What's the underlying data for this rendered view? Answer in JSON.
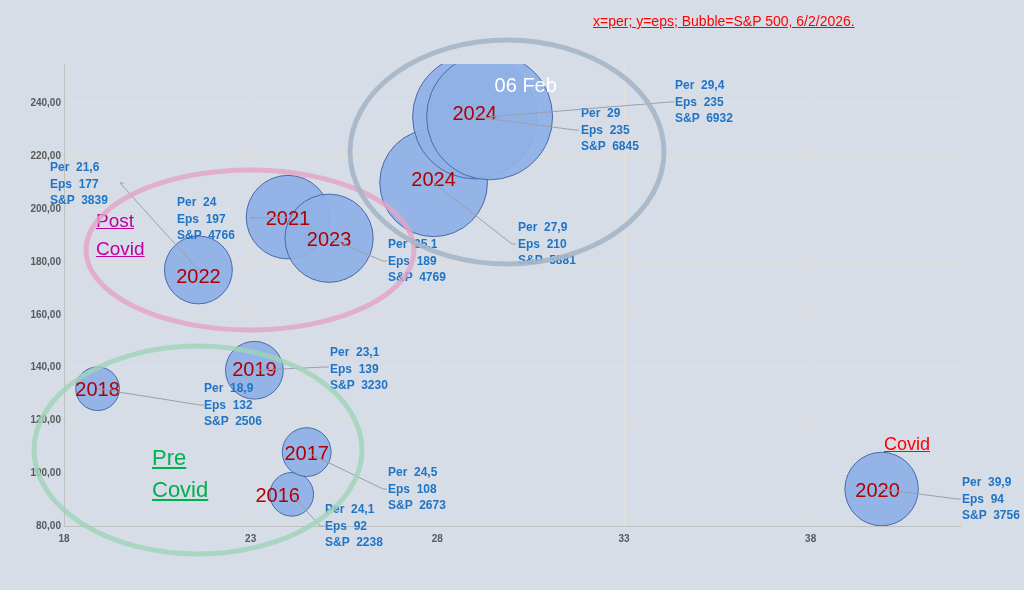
{
  "chart_data": {
    "type": "bubble",
    "title": "x=per; y=eps; Bubble=S&P 500, 6/2/2026.",
    "x": [
      24.1,
      24.5,
      18.9,
      23.1,
      39.9,
      24,
      21.6,
      25.1,
      27.9,
      29,
      29.4
    ],
    "series": [
      {
        "color": "#8fb0e6",
        "values": [
          92,
          108,
          132,
          139,
          94,
          197,
          177,
          189,
          210,
          235,
          235
        ],
        "sizes": [
          0.12,
          0.15,
          0.12,
          0.21,
          0.34,
          0.44,
          0.29,
          0.49,
          0.73,
          0.97,
          1
        ]
      }
    ],
    "xlim": [
      18,
      42
    ],
    "xticks": [
      18,
      23,
      28,
      33,
      38
    ],
    "ylim": [
      80,
      255
    ],
    "yticks": [
      {
        "value": 80,
        "label": "80,00"
      },
      {
        "value": 100,
        "label": "100,00"
      },
      {
        "value": 120,
        "label": "120,00"
      },
      {
        "value": 140,
        "label": "140,00"
      },
      {
        "value": 160,
        "label": "160,00"
      },
      {
        "value": 180,
        "label": "180,00"
      },
      {
        "value": 200,
        "label": "200,00"
      },
      {
        "value": 220,
        "label": "220,00"
      },
      {
        "value": 240,
        "label": "240,00"
      }
    ],
    "grid": true,
    "annotations": [
      "Post\nCovid",
      "Pre\nCovid",
      "Covid",
      {
        "text": "2016",
        "x": 24.1,
        "y": 92
      },
      {
        "text": "Per  24,1\nEps  92\nS&P  2238",
        "x": 24.1,
        "y": 92
      },
      {
        "text": "2017",
        "x": 24.5,
        "y": 108
      },
      {
        "text": "Per  24,5\nEps  108\nS&P  2673",
        "x": 24.5,
        "y": 108
      },
      {
        "text": "2018",
        "x": 18.9,
        "y": 132
      },
      {
        "text": "Per  18,9\nEps  132\nS&P  2506",
        "x": 18.9,
        "y": 132
      },
      {
        "text": "2019",
        "x": 23.1,
        "y": 139
      },
      {
        "text": "Per  23,1\nEps  139\nS&P  3230",
        "x": 23.1,
        "y": 139
      },
      {
        "text": "2020",
        "x": 39.9,
        "y": 94
      },
      {
        "text": "Per  39,9\nEps  94\nS&P  3756",
        "x": 39.9,
        "y": 94
      },
      {
        "text": "2021",
        "x": 24,
        "y": 197
      },
      {
        "text": "Per  24\nEps  197\nS&P  4766",
        "x": 24,
        "y": 197
      },
      {
        "text": "2022",
        "x": 21.6,
        "y": 177
      },
      {
        "text": "Per  21,6\nEps  177\nS&P  3839",
        "x": 21.6,
        "y": 177
      },
      {
        "text": "2023",
        "x": 25.1,
        "y": 189
      },
      {
        "text": "Per  25,1\nEps  189\nS&P  4769",
        "x": 25.1,
        "y": 189
      },
      {
        "text": "2024",
        "x": 27.9,
        "y": 210
      },
      {
        "text": "Per  27,9\nEps  210\nS&P  5881",
        "x": 27.9,
        "y": 210
      },
      {
        "text": "2024",
        "x": 29,
        "y": 235
      },
      {
        "text": "Per  29\nEps  235\nS&P  6845",
        "x": 29,
        "y": 235
      },
      {
        "text": "06 Feb",
        "x": 29.4,
        "y": 235
      },
      {
        "text": "Per  29,4\nEps  235\nS&P  6932",
        "x": 29.4,
        "y": 235
      }
    ]
  }
}
